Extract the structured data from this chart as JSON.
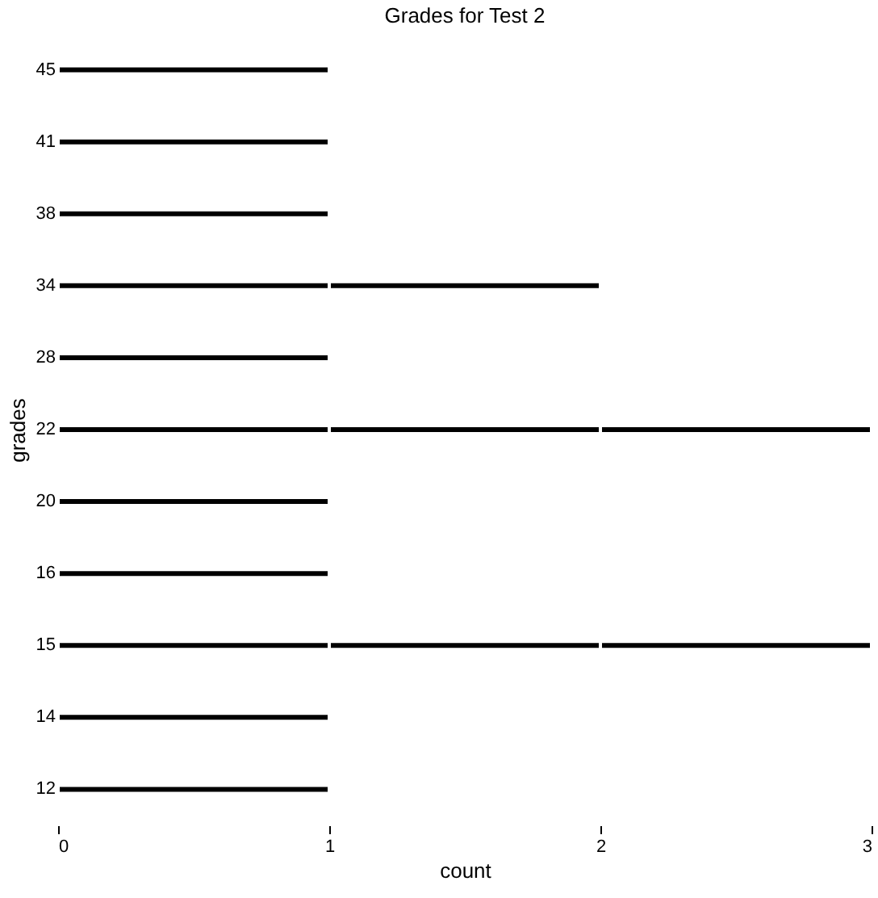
{
  "chart_data": {
    "type": "bar",
    "title": "Grades for Test 2",
    "xlabel": "count",
    "ylabel": "grades",
    "orientation": "horizontal",
    "stacked": true,
    "categories": [
      "45",
      "41",
      "38",
      "34",
      "28",
      "22",
      "20",
      "16",
      "15",
      "14",
      "12"
    ],
    "series": [
      {
        "color": "#000000",
        "values": [
          1,
          1,
          1,
          1,
          1,
          1,
          1,
          1,
          1,
          1,
          1
        ]
      },
      {
        "color": "#000000",
        "values": [
          null,
          null,
          null,
          1,
          null,
          1,
          null,
          null,
          1,
          null,
          null
        ]
      },
      {
        "color": "#000000",
        "values": [
          null,
          null,
          null,
          null,
          null,
          1,
          null,
          null,
          1,
          null,
          null
        ]
      }
    ],
    "xlim": [
      0,
      3
    ],
    "xticks": [
      0,
      1,
      2,
      3
    ],
    "grid": false
  }
}
